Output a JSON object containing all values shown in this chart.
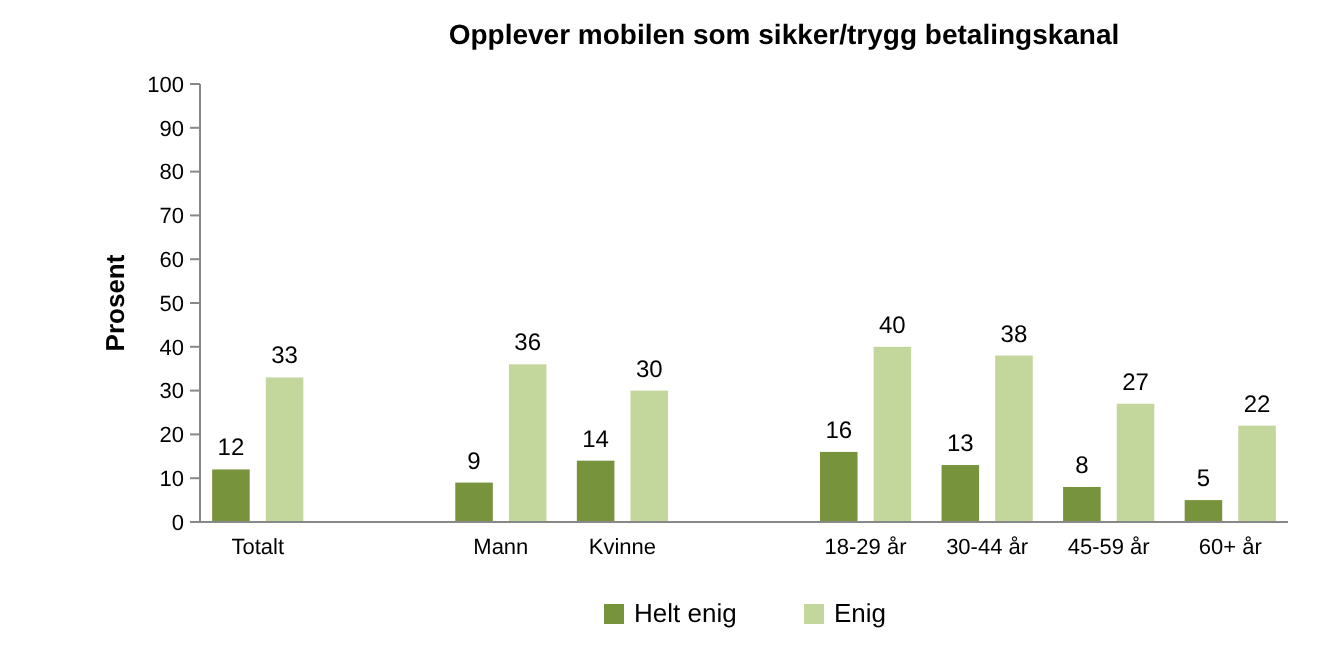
{
  "chart_data": {
    "type": "bar",
    "title": "Opplever mobilen som sikker/trygg betalingskanal",
    "ylabel": "Prosent",
    "categories": [
      "Totalt",
      null,
      "Mann",
      "Kvinne",
      null,
      "18-29 år",
      "30-44 år",
      "45-59 år",
      "60+ år"
    ],
    "series": [
      {
        "name": "Helt enig",
        "color": "#77933c",
        "values": [
          12,
          null,
          9,
          14,
          null,
          16,
          13,
          8,
          5
        ]
      },
      {
        "name": "Enig",
        "color": "#c3d69b",
        "values": [
          33,
          null,
          36,
          30,
          null,
          40,
          38,
          27,
          22
        ]
      }
    ],
    "ylim": [
      0,
      100
    ],
    "yticks": [
      0,
      10,
      20,
      30,
      40,
      50,
      60,
      70,
      80,
      90,
      100
    ],
    "grid": false,
    "legend": "bottom",
    "data_labels": true
  }
}
